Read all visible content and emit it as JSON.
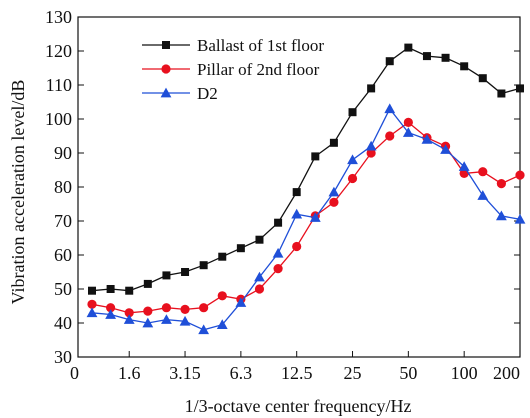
{
  "chart_data": {
    "type": "line",
    "title": "",
    "xlabel": "1/3-octave center frequency/Hz",
    "ylabel": "Vibration acceleration level/dB",
    "ylim": [
      30,
      130
    ],
    "yticks": [
      30,
      40,
      50,
      60,
      70,
      80,
      90,
      100,
      110,
      120,
      130
    ],
    "xtick_labels": [
      "0",
      "1.6",
      "3.15",
      "6.3",
      "12.5",
      "25",
      "50",
      "100",
      "200"
    ],
    "x": [
      1.0,
      1.25,
      1.6,
      2.0,
      2.5,
      3.15,
      4.0,
      5.0,
      6.3,
      8.0,
      10.0,
      12.5,
      16.0,
      20.0,
      25.0,
      31.5,
      40.0,
      50.0,
      63.0,
      80.0,
      100.0,
      125.0,
      160.0
    ],
    "grid": false,
    "legend_position": "top-left",
    "series": [
      {
        "name": "Ballast of 1st floor",
        "color": "#111111",
        "marker": "square",
        "values": [
          49.5,
          50,
          49.5,
          51.5,
          54,
          55,
          57,
          59.5,
          62,
          64.5,
          69.5,
          78.5,
          89,
          93,
          102,
          109,
          117,
          121,
          118.5,
          118,
          115.5,
          112,
          107.5
        ]
      },
      {
        "name": "Pillar of 2nd floor",
        "color": "#e8101e",
        "marker": "circle",
        "values": [
          45.5,
          44.5,
          43,
          43.5,
          44.5,
          44,
          44.5,
          48,
          47,
          50,
          56,
          62.5,
          71.5,
          75.5,
          82.5,
          90,
          95,
          99,
          94.5,
          92,
          84,
          84.5,
          81
        ]
      },
      {
        "name": "D2",
        "color": "#1f4fd8",
        "marker": "triangle",
        "values": [
          43,
          42.5,
          41,
          40,
          41,
          40.5,
          38,
          39.5,
          46,
          53.5,
          60.5,
          72,
          71,
          78.5,
          88,
          92,
          103,
          96,
          94,
          91,
          86,
          77.5,
          71.5
        ]
      }
    ],
    "extra_points": {
      "Ballast of 1st floor": [
        200.0,
        109
      ],
      "Pillar of 2nd floor": [
        200.0,
        83.5
      ],
      "D2": [
        200.0,
        70.5
      ]
    }
  }
}
